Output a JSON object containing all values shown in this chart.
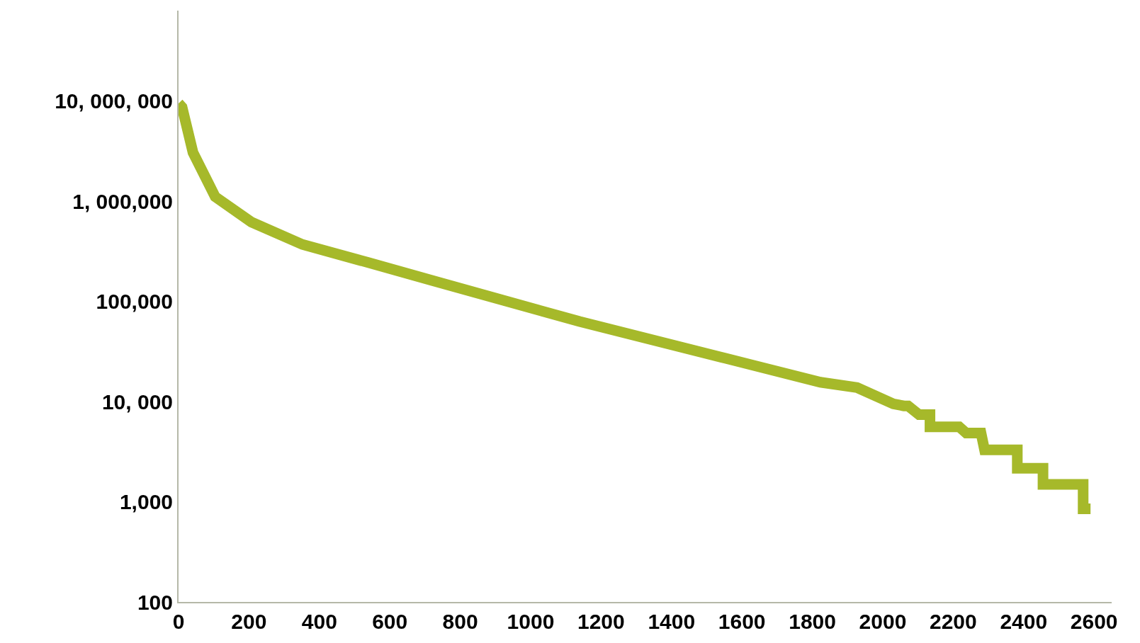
{
  "chart_data": {
    "type": "line",
    "log": "y",
    "grid": false,
    "marker": "none",
    "line_style": "solid",
    "x": [
      0,
      10,
      41,
      104,
      207,
      352,
      539,
      725,
      1139,
      1554,
      1823,
      1927,
      2030,
      2060,
      2072,
      2103,
      2134,
      2134,
      2155,
      2155,
      2217,
      2237,
      2279,
      2289,
      2289,
      2382,
      2382,
      2455,
      2455,
      2569,
      2569,
      2590
    ],
    "series": [
      {
        "color": "#a6b92a",
        "values": [
          9500000,
          8700000,
          3070000,
          1110000,
          620000,
          370000,
          244000,
          160000,
          63000,
          27000,
          15600,
          13800,
          9500,
          9060,
          9060,
          7400,
          7400,
          5600,
          5600,
          5600,
          5600,
          4850,
          4850,
          3300,
          3300,
          3300,
          2160,
          2160,
          1490,
          1490,
          850,
          850
        ]
      }
    ],
    "xlim": [
      0,
      2650
    ],
    "xticks": [
      0,
      200,
      400,
      600,
      800,
      1000,
      1200,
      1400,
      1600,
      1800,
      2000,
      2200,
      2400,
      2600
    ],
    "ylim": [
      100,
      80000000
    ],
    "yticks": [
      {
        "value": 100,
        "label": "100"
      },
      {
        "value": 1000,
        "label": "1,000"
      },
      {
        "value": 10000,
        "label": "10, 000"
      },
      {
        "value": 100000,
        "label": "100,000"
      },
      {
        "value": 1000000,
        "label": "1, 000,000"
      },
      {
        "value": 10000000,
        "label": "10, 000, 000"
      }
    ]
  }
}
